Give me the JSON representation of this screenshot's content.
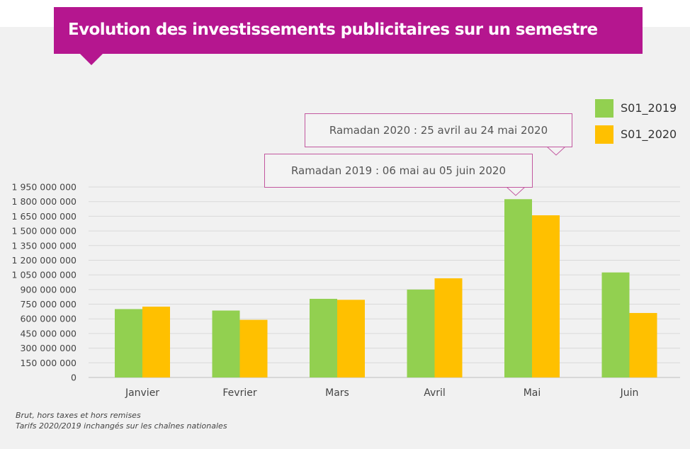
{
  "title": "Evolution des investissements publicitaires sur un semestre",
  "annotations": [
    "Ramadan 2020 : 25 avril au 24 mai 2020",
    "Ramadan 2019 : 06 mai au 05 juin 2020"
  ],
  "footnotes": [
    "Brut, hors taxes et hors remises",
    "Tarifs 2020/2019 inchangés sur les chaînes nationales"
  ],
  "colors": {
    "banner": "#b5168f",
    "callout_border": "#c2579f",
    "s2019": "#92d050",
    "s2020": "#ffc000"
  },
  "chart_data": {
    "type": "bar",
    "title": "Evolution des investissements publicitaires sur un semestre",
    "xlabel": "",
    "ylabel": "",
    "categories": [
      "Janvier",
      "Fevrier",
      "Mars",
      "Avril",
      "Mai",
      "Juin"
    ],
    "series": [
      {
        "name": "S01_2019",
        "color": "#92d050",
        "values": [
          700000000,
          685000000,
          805000000,
          900000000,
          1825000000,
          1075000000
        ]
      },
      {
        "name": "S01_2020",
        "color": "#ffc000",
        "values": [
          725000000,
          590000000,
          795000000,
          1015000000,
          1660000000,
          660000000
        ]
      }
    ],
    "ylim": [
      0,
      1950000000
    ],
    "yticks": [
      0,
      150000000,
      300000000,
      450000000,
      600000000,
      750000000,
      900000000,
      1050000000,
      1200000000,
      1350000000,
      1500000000,
      1650000000,
      1800000000,
      1950000000
    ],
    "ytick_labels": [
      "0",
      "150 000 000",
      "300 000 000",
      "450 000 000",
      "600 000 000",
      "750 000 000",
      "900 000 000",
      "1 050 000 000",
      "1 200 000 000",
      "1 350 000 000",
      "1 500 000 000",
      "1 650 000 000",
      "1 800 000 000",
      "1 950 000 000"
    ],
    "grid": true,
    "legend_position": "top-right"
  }
}
